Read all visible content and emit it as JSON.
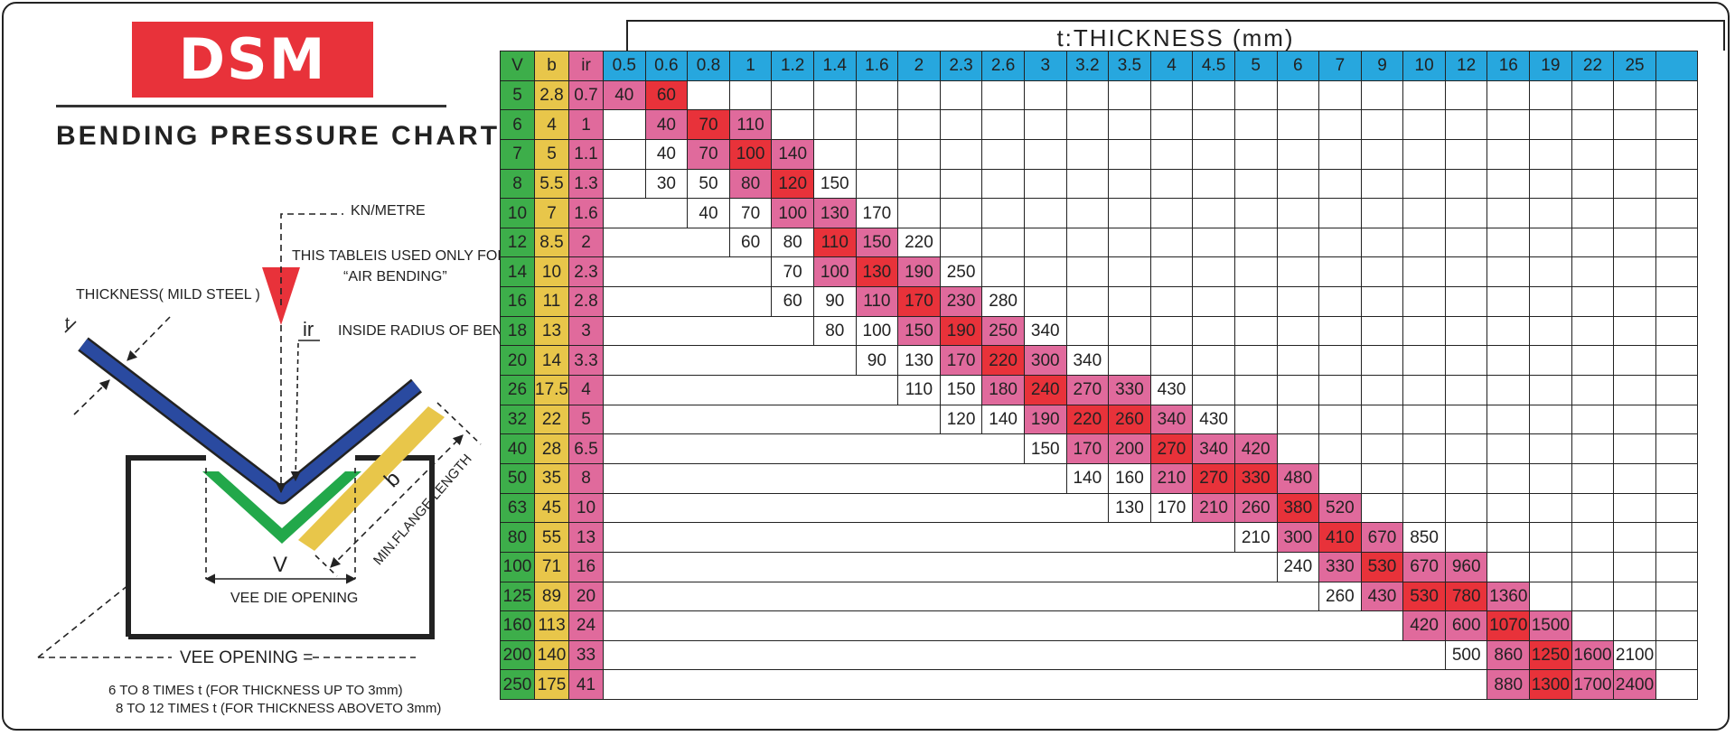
{
  "logo": {
    "text": "DSM"
  },
  "title": "BENDING PRESSURE CHART",
  "diagram": {
    "kn_metre": "KN/METRE",
    "usage_note_1": "THIS  TABLEIS USED ONLY FOR",
    "usage_note_2": "“AIR BENDING”",
    "thickness_label": "THICKNESS( MILD STEEL )",
    "t_symbol": "t",
    "ir_symbol": "ir",
    "inside_radius": "INSIDE RADIUS OF BEND",
    "b_symbol": "b",
    "min_flange": "MIN.FLANGE LENGTH",
    "v_symbol": "V",
    "vee_die_opening": "VEE DIE OPENING",
    "vee_opening": "VEE OPENING =",
    "rule_1": "6  TO 8 TIMES t (FOR THICKNESS UP TO 3mm)",
    "rule_2": "8 TO 12 TIMES t (FOR THICKNESS ABOVETO 3mm)"
  },
  "colors": {
    "red": "#e8323a",
    "pink": "#e06a9c",
    "green": "#3dae4a",
    "yellow": "#e8c64a",
    "blue": "#27a7de",
    "navy": "#2a4aa0"
  },
  "table": {
    "banner": "t:THICKNESS  (mm)",
    "row_headers": [
      "V",
      "b",
      "ir"
    ],
    "thicknesses": [
      "0.5",
      "0.6",
      "0.8",
      "1",
      "1.2",
      "1.4",
      "1.6",
      "2",
      "2.3",
      "2.6",
      "3",
      "3.2",
      "3.5",
      "4",
      "4.5",
      "5",
      "6",
      "7",
      "9",
      "10",
      "12",
      "16",
      "19",
      "22",
      "25",
      ""
    ],
    "rows": [
      {
        "v": "5",
        "b": "2.8",
        "ir": "0.7",
        "start": 0,
        "cells": [
          [
            "40",
            "p"
          ],
          [
            "60",
            "r"
          ]
        ]
      },
      {
        "v": "6",
        "b": "4",
        "ir": "1",
        "start": 1,
        "cells": [
          [
            "40",
            "p"
          ],
          [
            "70",
            "r"
          ],
          [
            "110",
            "p"
          ]
        ]
      },
      {
        "v": "7",
        "b": "5",
        "ir": "1.1",
        "start": 1,
        "cells": [
          [
            "40",
            ""
          ],
          [
            "70",
            "p"
          ],
          [
            "100",
            "r"
          ],
          [
            "140",
            "p"
          ]
        ]
      },
      {
        "v": "8",
        "b": "5.5",
        "ir": "1.3",
        "start": 1,
        "cells": [
          [
            "30",
            ""
          ],
          [
            "50",
            ""
          ],
          [
            "80",
            "p"
          ],
          [
            "120",
            "r"
          ],
          [
            "150",
            ""
          ]
        ]
      },
      {
        "v": "10",
        "b": "7",
        "ir": "1.6",
        "start": 2,
        "cells": [
          [
            "40",
            ""
          ],
          [
            "70",
            ""
          ],
          [
            "100",
            "p"
          ],
          [
            "130",
            "p"
          ],
          [
            "170",
            ""
          ]
        ]
      },
      {
        "v": "12",
        "b": "8.5",
        "ir": "2",
        "start": 3,
        "cells": [
          [
            "60",
            ""
          ],
          [
            "80",
            ""
          ],
          [
            "110",
            "r"
          ],
          [
            "150",
            "p"
          ],
          [
            "220",
            ""
          ]
        ]
      },
      {
        "v": "14",
        "b": "10",
        "ir": "2.3",
        "start": 4,
        "cells": [
          [
            "70",
            ""
          ],
          [
            "100",
            "p"
          ],
          [
            "130",
            "r"
          ],
          [
            "190",
            "p"
          ],
          [
            "250",
            ""
          ]
        ]
      },
      {
        "v": "16",
        "b": "11",
        "ir": "2.8",
        "start": 4,
        "cells": [
          [
            "60",
            ""
          ],
          [
            "90",
            ""
          ],
          [
            "110",
            "p"
          ],
          [
            "170",
            "r"
          ],
          [
            "230",
            "p"
          ],
          [
            "280",
            ""
          ]
        ]
      },
      {
        "v": "18",
        "b": "13",
        "ir": "3",
        "start": 5,
        "cells": [
          [
            "80",
            ""
          ],
          [
            "100",
            ""
          ],
          [
            "150",
            "p"
          ],
          [
            "190",
            "r"
          ],
          [
            "250",
            "p"
          ],
          [
            "340",
            ""
          ]
        ]
      },
      {
        "v": "20",
        "b": "14",
        "ir": "3.3",
        "start": 6,
        "cells": [
          [
            "90",
            ""
          ],
          [
            "130",
            ""
          ],
          [
            "170",
            "p"
          ],
          [
            "220",
            "r"
          ],
          [
            "300",
            "p"
          ],
          [
            "340",
            ""
          ]
        ]
      },
      {
        "v": "26",
        "b": "17.5",
        "ir": "4",
        "start": 7,
        "cells": [
          [
            "110",
            ""
          ],
          [
            "150",
            ""
          ],
          [
            "180",
            "p"
          ],
          [
            "240",
            "r"
          ],
          [
            "270",
            "p"
          ],
          [
            "330",
            "p"
          ],
          [
            "430",
            ""
          ]
        ]
      },
      {
        "v": "32",
        "b": "22",
        "ir": "5",
        "start": 8,
        "cells": [
          [
            "120",
            ""
          ],
          [
            "140",
            ""
          ],
          [
            "190",
            "p"
          ],
          [
            "220",
            "r"
          ],
          [
            "260",
            "r"
          ],
          [
            "340",
            "p"
          ],
          [
            "430",
            ""
          ]
        ]
      },
      {
        "v": "40",
        "b": "28",
        "ir": "6.5",
        "start": 10,
        "cells": [
          [
            "150",
            ""
          ],
          [
            "170",
            "p"
          ],
          [
            "200",
            "p"
          ],
          [
            "270",
            "r"
          ],
          [
            "340",
            "p"
          ],
          [
            "420",
            "p"
          ]
        ]
      },
      {
        "v": "50",
        "b": "35",
        "ir": "8",
        "start": 11,
        "cells": [
          [
            "140",
            ""
          ],
          [
            "160",
            ""
          ],
          [
            "210",
            "p"
          ],
          [
            "270",
            "r"
          ],
          [
            "330",
            "r"
          ],
          [
            "480",
            "p"
          ]
        ]
      },
      {
        "v": "63",
        "b": "45",
        "ir": "10",
        "start": 12,
        "cells": [
          [
            "130",
            ""
          ],
          [
            "170",
            ""
          ],
          [
            "210",
            "p"
          ],
          [
            "260",
            "p"
          ],
          [
            "380",
            "r"
          ],
          [
            "520",
            "p"
          ]
        ]
      },
      {
        "v": "80",
        "b": "55",
        "ir": "13",
        "start": 15,
        "cells": [
          [
            "210",
            ""
          ],
          [
            "300",
            "p"
          ],
          [
            "410",
            "r"
          ],
          [
            "670",
            "p"
          ],
          [
            "850",
            ""
          ]
        ]
      },
      {
        "v": "100",
        "b": "71",
        "ir": "16",
        "start": 16,
        "cells": [
          [
            "240",
            ""
          ],
          [
            "330",
            "p"
          ],
          [
            "530",
            "r"
          ],
          [
            "670",
            "p"
          ],
          [
            "960",
            "p"
          ]
        ]
      },
      {
        "v": "125",
        "b": "89",
        "ir": "20",
        "start": 17,
        "cells": [
          [
            "260",
            ""
          ],
          [
            "430",
            "p"
          ],
          [
            "530",
            "r"
          ],
          [
            "780",
            "r"
          ],
          [
            "1360",
            "p"
          ]
        ]
      },
      {
        "v": "160",
        "b": "113",
        "ir": "24",
        "start": 19,
        "cells": [
          [
            "420",
            "p"
          ],
          [
            "600",
            "p"
          ],
          [
            "1070",
            "r"
          ],
          [
            "1500",
            "p"
          ]
        ]
      },
      {
        "v": "200",
        "b": "140",
        "ir": "33",
        "start": 20,
        "cells": [
          [
            "500",
            ""
          ],
          [
            "860",
            "p"
          ],
          [
            "1250",
            "r"
          ],
          [
            "1600",
            "p"
          ],
          [
            "2100",
            ""
          ]
        ]
      },
      {
        "v": "250",
        "b": "175",
        "ir": "41",
        "start": 21,
        "cells": [
          [
            "880",
            "p"
          ],
          [
            "1300",
            "r"
          ],
          [
            "1700",
            "p"
          ],
          [
            "2400",
            "p"
          ]
        ]
      }
    ]
  }
}
